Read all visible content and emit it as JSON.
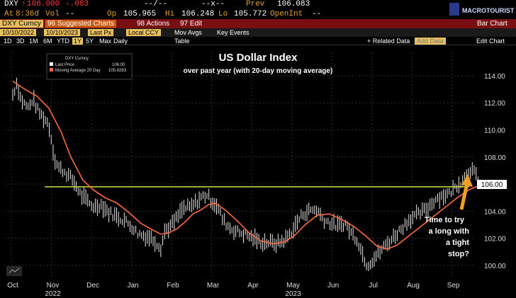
{
  "header": {
    "ticker": "DXY",
    "last": "106.000",
    "change": "-.083",
    "time_label": "At",
    "time": "8:36d",
    "vol_label": "Vol",
    "vol": "--",
    "blank1": "--/--",
    "blank2": "--x--",
    "prev_label": "Prev",
    "prev": "106.083",
    "op_label": "Op",
    "op": "105.965",
    "hi_label": "Hi",
    "hi": "106.248",
    "lo_label": "Lo",
    "lo": "105.772",
    "openint_label": "OpenInt",
    "openint": "--"
  },
  "logo": {
    "text": "MACROTOURIST",
    "icon": "macrotourist-logo-icon"
  },
  "toolbar": {
    "security": "DXY Curncy",
    "suggested": "96 Suggested Charts",
    "actions": "98 Actions",
    "edit": "97 Edit",
    "chart_type": "Bar Chart",
    "date_from": "10/10/2022",
    "date_to": "10/10/2023",
    "price_type": "Last Px",
    "currency": "Local CCY",
    "mov_avgs": "Mov Avgs",
    "key_events": "Key Events",
    "ranges": [
      "1D",
      "3D",
      "1M",
      "6M",
      "YTD",
      "1Y",
      "5Y",
      "Max"
    ],
    "selected_range": "1Y",
    "frequency": "Daily",
    "table": "Table",
    "related": "+ Related Data",
    "add_data": "Add Data",
    "edit_chart": "Edit Chart"
  },
  "chart_data": {
    "type": "bar",
    "title": "US Dollar Index",
    "subtitle": "over past year (with 20-day moving average)",
    "legend": {
      "title": "DXY Curncy",
      "placement": "top-left",
      "entries": [
        {
          "name": "Last Price",
          "value": "106.00",
          "color": "#ffffff"
        },
        {
          "name": "Moving Average 20 Day",
          "value": "105.9283",
          "color": "#ff6a3d"
        }
      ]
    },
    "y_ticks": [
      "114.00",
      "112.00",
      "110.00",
      "108.00",
      "106.00",
      "104.00",
      "102.00",
      "100.00"
    ],
    "ylim": [
      99,
      115.2
    ],
    "x_ticks": [
      "Oct",
      "Nov",
      "Dec",
      "Jan",
      "Feb",
      "Mar",
      "Apr",
      "May",
      "Jun",
      "Jul",
      "Aug",
      "Sep"
    ],
    "x_years": [
      "2022",
      "2023"
    ],
    "last_price_label": "106.00",
    "horizontal_line": 105.8,
    "annotation": [
      "Time to try",
      "a long with",
      "a tight",
      "stop?"
    ],
    "price_series": [
      [
        0,
        112.6
      ],
      [
        0.1,
        113.5
      ],
      [
        0.2,
        112.3
      ],
      [
        0.3,
        111.9
      ],
      [
        0.4,
        111.6
      ],
      [
        0.5,
        112.3
      ],
      [
        0.65,
        111.3
      ],
      [
        0.8,
        110.8
      ],
      [
        0.9,
        110.4
      ],
      [
        1.05,
        107.8
      ],
      [
        1.15,
        107.2
      ],
      [
        1.3,
        106.9
      ],
      [
        1.5,
        106.3
      ],
      [
        1.7,
        105.2
      ],
      [
        1.9,
        104.6
      ],
      [
        2.05,
        104.3
      ],
      [
        2.2,
        104.5
      ],
      [
        2.4,
        103.9
      ],
      [
        2.6,
        103.6
      ],
      [
        2.8,
        103.3
      ],
      [
        3.0,
        102.8
      ],
      [
        3.1,
        102.4
      ],
      [
        3.25,
        102.2
      ],
      [
        3.4,
        102.1
      ],
      [
        3.55,
        101.8
      ],
      [
        3.7,
        101.3
      ],
      [
        3.8,
        102.6
      ],
      [
        3.95,
        102.9
      ],
      [
        4.1,
        103.5
      ],
      [
        4.25,
        104.2
      ],
      [
        4.45,
        104.3
      ],
      [
        4.6,
        104.7
      ],
      [
        4.75,
        105.1
      ],
      [
        4.85,
        105.2
      ],
      [
        4.95,
        104.8
      ],
      [
        5.1,
        104.4
      ],
      [
        5.25,
        103.3
      ],
      [
        5.45,
        102.7
      ],
      [
        5.6,
        102.5
      ],
      [
        5.8,
        102.3
      ],
      [
        6.0,
        102.0
      ],
      [
        6.2,
        101.7
      ],
      [
        6.4,
        101.7
      ],
      [
        6.6,
        101.6
      ],
      [
        6.8,
        101.9
      ],
      [
        7.0,
        102.6
      ],
      [
        7.1,
        103.2
      ],
      [
        7.25,
        103.8
      ],
      [
        7.45,
        104.1
      ],
      [
        7.6,
        104.1
      ],
      [
        7.75,
        103.4
      ],
      [
        7.95,
        103.1
      ],
      [
        8.1,
        102.9
      ],
      [
        8.3,
        103.1
      ],
      [
        8.45,
        102.4
      ],
      [
        8.6,
        101.9
      ],
      [
        8.75,
        100.7
      ],
      [
        8.85,
        100.0
      ],
      [
        8.95,
        100.3
      ],
      [
        9.1,
        100.8
      ],
      [
        9.25,
        101.3
      ],
      [
        9.45,
        101.9
      ],
      [
        9.6,
        102.4
      ],
      [
        9.75,
        102.9
      ],
      [
        9.9,
        103.4
      ],
      [
        10.0,
        103.6
      ],
      [
        10.15,
        103.8
      ],
      [
        10.35,
        104.2
      ],
      [
        10.55,
        104.9
      ],
      [
        10.7,
        105.1
      ],
      [
        10.9,
        105.3
      ],
      [
        11.05,
        105.8
      ],
      [
        11.2,
        106.2
      ],
      [
        11.35,
        106.9
      ],
      [
        11.45,
        107.1
      ],
      [
        11.55,
        106.7
      ],
      [
        11.65,
        106.0
      ]
    ],
    "ma20_series": [
      [
        0,
        113.6
      ],
      [
        0.3,
        113.0
      ],
      [
        0.6,
        112.5
      ],
      [
        0.9,
        111.6
      ],
      [
        1.2,
        109.9
      ],
      [
        1.45,
        108.0
      ],
      [
        1.75,
        106.3
      ],
      [
        2.0,
        105.6
      ],
      [
        2.3,
        105.0
      ],
      [
        2.6,
        104.6
      ],
      [
        2.9,
        103.9
      ],
      [
        3.2,
        103.1
      ],
      [
        3.5,
        102.6
      ],
      [
        3.7,
        102.3
      ],
      [
        3.9,
        102.4
      ],
      [
        4.1,
        102.7
      ],
      [
        4.3,
        103.2
      ],
      [
        4.5,
        103.8
      ],
      [
        4.7,
        104.1
      ],
      [
        4.9,
        104.5
      ],
      [
        5.05,
        104.6
      ],
      [
        5.3,
        104.1
      ],
      [
        5.6,
        103.3
      ],
      [
        5.9,
        102.4
      ],
      [
        6.2,
        101.8
      ],
      [
        6.5,
        101.6
      ],
      [
        6.75,
        101.7
      ],
      [
        7.0,
        102.1
      ],
      [
        7.3,
        103.0
      ],
      [
        7.6,
        103.7
      ],
      [
        7.9,
        103.8
      ],
      [
        8.2,
        103.4
      ],
      [
        8.5,
        102.9
      ],
      [
        8.8,
        102.2
      ],
      [
        9.1,
        101.4
      ],
      [
        9.35,
        101.2
      ],
      [
        9.6,
        101.5
      ],
      [
        9.9,
        102.2
      ],
      [
        10.2,
        102.9
      ],
      [
        10.5,
        103.6
      ],
      [
        10.8,
        104.3
      ],
      [
        11.1,
        105.0
      ],
      [
        11.4,
        105.6
      ],
      [
        11.65,
        105.9
      ]
    ]
  }
}
